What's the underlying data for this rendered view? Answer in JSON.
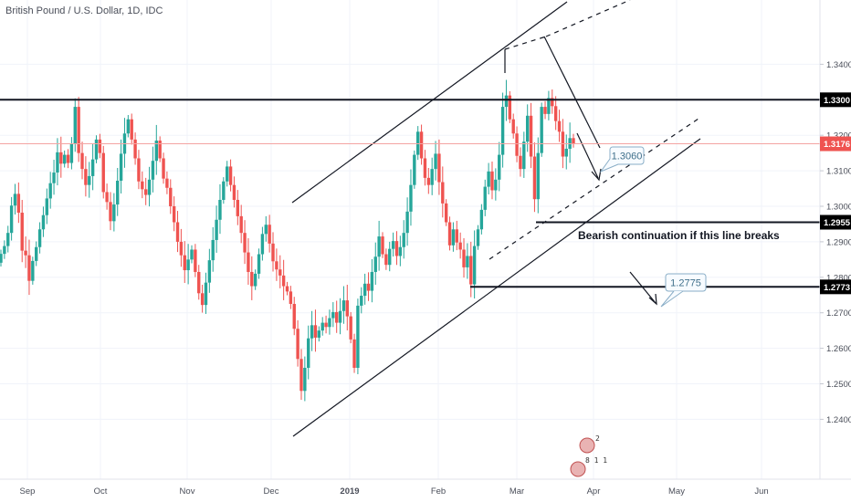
{
  "header": {
    "title": "British Pound / U.S. Dollar, 1D, IDC"
  },
  "colors": {
    "up": "#26a69a",
    "down": "#ef5350",
    "grid": "#f0f3fa",
    "line": "#131722",
    "current_price_line": "#f4a4a2",
    "callout_border": "#8aaec7",
    "callout_text": "#3f6f8a"
  },
  "annotations": {
    "bearish_text": "Bearish continuation if this line breaks",
    "callout_1": "1.3060",
    "callout_2": "1.2775",
    "event_badge_1": "2",
    "event_badge_2": "8 1 1"
  },
  "chart_data": {
    "type": "candlestick",
    "title": "British Pound / U.S. Dollar, 1D, IDC",
    "x_ticks": [
      "Sep",
      "Oct",
      "Nov",
      "Dec",
      "2019",
      "Feb",
      "Mar",
      "Apr",
      "May",
      "Jun"
    ],
    "y_ticks": [
      "1.3400",
      "1.3300",
      "1.3200",
      "1.3100",
      "1.3000",
      "1.2955",
      "1.2900",
      "1.2800",
      "1.2773",
      "1.2700",
      "1.2600",
      "1.2500",
      "1.2400"
    ],
    "ylim": [
      1.2375,
      1.3475
    ],
    "highlighted_prices": [
      {
        "label": "1.3300",
        "style": "black"
      },
      {
        "label": "1.3176",
        "style": "red"
      },
      {
        "label": "1.2955",
        "style": "black"
      },
      {
        "label": "1.2773",
        "style": "black"
      }
    ],
    "horizontal_levels": [
      1.33,
      1.2955,
      1.2773
    ],
    "current_price": 1.3176,
    "series": [
      {
        "name": "",
        "close": [
          1.2866,
          1.2888,
          1.2925,
          1.3002,
          1.3035,
          1.2982,
          1.2875,
          1.2862,
          1.279,
          1.2846,
          1.2885,
          1.2935,
          1.2975,
          1.3022,
          1.3065,
          1.3095,
          1.3152,
          1.312,
          1.3145,
          1.3122,
          1.3175,
          1.328,
          1.315,
          1.3105,
          1.306,
          1.3085,
          1.3132,
          1.3188,
          1.315,
          1.304,
          1.3012,
          1.2958,
          1.3005,
          1.3072,
          1.3148,
          1.3205,
          1.3245,
          1.3188,
          1.3135,
          1.307,
          1.3048,
          1.3032,
          1.3075,
          1.3128,
          1.3185,
          1.3135,
          1.3078,
          1.3052,
          1.3,
          1.2955,
          1.29,
          1.2862,
          1.282,
          1.285,
          1.2878,
          1.2815,
          1.2755,
          1.2722,
          1.2785,
          1.2848,
          1.2905,
          1.2962,
          1.3018,
          1.307,
          1.3112,
          1.306,
          1.3018,
          1.2972,
          1.2925,
          1.287,
          1.2815,
          1.2775,
          1.281,
          1.2865,
          1.2922,
          1.2948,
          1.2895,
          1.2845,
          1.2822,
          1.2805,
          1.2775,
          1.276,
          1.2725,
          1.2655,
          1.257,
          1.248,
          1.2545,
          1.2628,
          1.2665,
          1.263,
          1.265,
          1.2672,
          1.266,
          1.2685,
          1.2702,
          1.2672,
          1.2705,
          1.2735,
          1.269,
          1.2625,
          1.2545,
          1.272,
          1.2748,
          1.2782,
          1.2762,
          1.2815,
          1.2858,
          1.2915,
          1.2865,
          1.2835,
          1.288,
          1.2902,
          1.286,
          1.2885,
          1.2925,
          1.2985,
          1.306,
          1.3145,
          1.321,
          1.3135,
          1.308,
          1.306,
          1.3105,
          1.3148,
          1.3068,
          1.3008,
          1.2955,
          1.289,
          1.2935,
          1.2898,
          1.2878,
          1.2828,
          1.286,
          1.278,
          1.2888,
          1.2935,
          1.299,
          1.3055,
          1.3098,
          1.3045,
          1.3075,
          1.3145,
          1.328,
          1.3312,
          1.3245,
          1.3205,
          1.3142,
          1.3105,
          1.3182,
          1.3255,
          1.314,
          1.302,
          1.315,
          1.328,
          1.326,
          1.3305,
          1.3282,
          1.324,
          1.321,
          1.314,
          1.3162,
          1.3192,
          1.3176
        ]
      }
    ]
  }
}
